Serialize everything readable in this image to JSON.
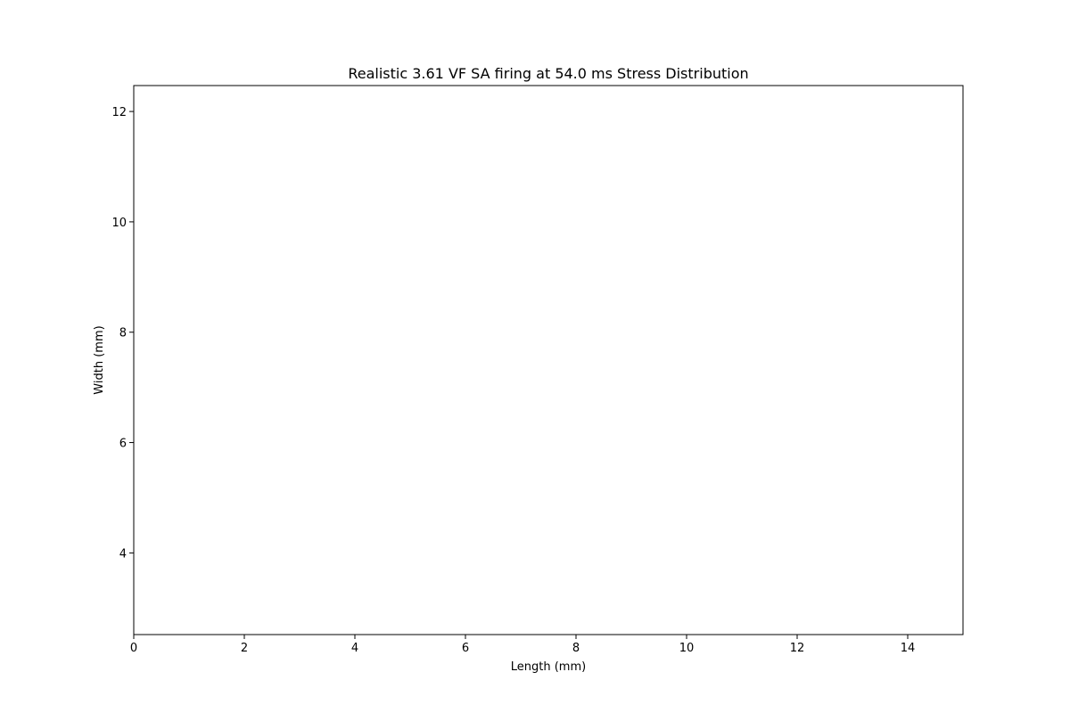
{
  "chart_data": {
    "type": "heatmap",
    "title": "Realistic 3.61 VF SA firing at 54.0 ms Stress Distribution",
    "xlabel": "Length (mm)",
    "ylabel": "Width (mm)",
    "xlim": [
      0,
      15
    ],
    "ylim": [
      2.52,
      12.47
    ],
    "x_ticks": [
      0,
      2,
      4,
      6,
      8,
      10,
      12,
      14
    ],
    "y_ticks": [
      4,
      6,
      8,
      10,
      12
    ],
    "grid": false,
    "legend": "none",
    "values": []
  }
}
